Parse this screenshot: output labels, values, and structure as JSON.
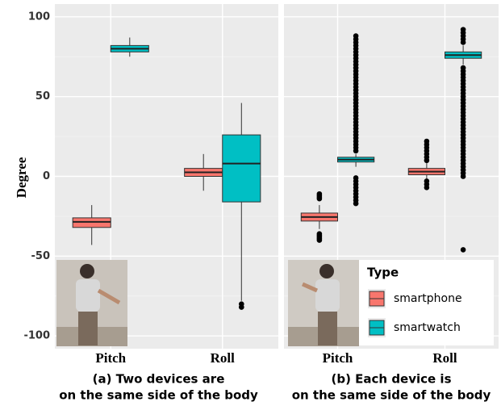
{
  "chart_data": [
    {
      "type": "box",
      "ylabel": "Degree",
      "caption": [
        "(a) Two devices are",
        "on the same side of the body"
      ],
      "categories": [
        "Pitch",
        "Roll"
      ],
      "ylim": [
        -108,
        108
      ],
      "yticks": [
        -100,
        -50,
        0,
        50,
        100
      ],
      "series": [
        {
          "name": "smartphone",
          "color": "#f8766d",
          "boxes": [
            {
              "whislo": -43,
              "q1": -32,
              "med": -28.5,
              "q3": -26,
              "whishi": -18,
              "fliers": []
            },
            {
              "whislo": -9,
              "q1": 0,
              "med": 2.5,
              "q3": 5,
              "whishi": 14,
              "fliers": []
            }
          ]
        },
        {
          "name": "smartwatch",
          "color": "#00bfc4",
          "boxes": [
            {
              "whislo": 75,
              "q1": 78,
              "med": 80,
              "q3": 82,
              "whishi": 87,
              "fliers": []
            },
            {
              "whislo": -78,
              "q1": -16,
              "med": 8,
              "q3": 26,
              "whishi": 46,
              "fliers": [
                -80,
                -82
              ]
            }
          ]
        }
      ]
    },
    {
      "type": "box",
      "caption": [
        "(b) Each device is",
        "on the same side of the body"
      ],
      "categories": [
        "Pitch",
        "Roll"
      ],
      "ylim": [
        -108,
        108
      ],
      "legend": true,
      "legend_title": "Type",
      "series": [
        {
          "name": "smartphone",
          "color": "#f8766d",
          "boxes": [
            {
              "whislo": -33,
              "q1": -28,
              "med": -25.5,
              "q3": -23,
              "whishi": -18,
              "fliers": [
                -11,
                -12,
                -13,
                -14,
                -36,
                -37,
                -38,
                -39,
                -40
              ]
            },
            {
              "whislo": -2,
              "q1": 1,
              "med": 3,
              "q3": 5,
              "whishi": 9,
              "fliers": [
                10,
                12,
                14,
                16,
                18,
                20,
                22,
                -3,
                -5,
                -7
              ]
            }
          ]
        },
        {
          "name": "smartwatch",
          "color": "#00bfc4",
          "boxes": [
            {
              "whislo": 6,
              "q1": 9,
              "med": 10.5,
              "q3": 12,
              "whishi": 14,
              "fliers": [
                16,
                18,
                20,
                22,
                24,
                26,
                28,
                30,
                32,
                34,
                36,
                38,
                40,
                42,
                44,
                46,
                48,
                50,
                52,
                54,
                56,
                58,
                60,
                62,
                64,
                66,
                68,
                70,
                72,
                74,
                76,
                78,
                80,
                82,
                84,
                86,
                88,
                -1,
                -3,
                -5,
                -7,
                -9,
                -11,
                -13,
                -15,
                -17
              ]
            },
            {
              "whislo": 70,
              "q1": 74,
              "med": 76,
              "q3": 78,
              "whishi": 82,
              "fliers": [
                84,
                86,
                88,
                90,
                92,
                68,
                66,
                64,
                62,
                60,
                58,
                56,
                54,
                52,
                50,
                48,
                46,
                44,
                42,
                40,
                38,
                36,
                34,
                32,
                30,
                28,
                26,
                24,
                22,
                20,
                18,
                16,
                14,
                12,
                10,
                8,
                6,
                4,
                2,
                0,
                -46
              ]
            }
          ]
        }
      ]
    }
  ]
}
